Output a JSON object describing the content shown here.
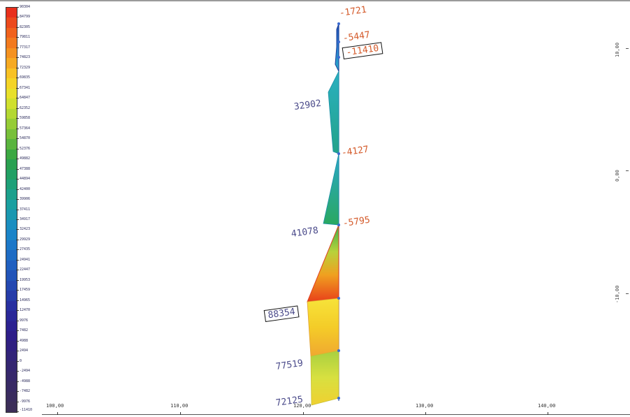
{
  "legend": {
    "labels": [
      "90304",
      "84799",
      "82305",
      "79811",
      "77317",
      "74823",
      "72329",
      "69835",
      "67341",
      "64847",
      "62352",
      "59858",
      "57364",
      "54870",
      "52376",
      "49882",
      "47388",
      "44894",
      "42400",
      "39906",
      "37411",
      "34917",
      "32423",
      "29929",
      "27435",
      "24941",
      "22447",
      "19953",
      "17459",
      "14965",
      "12470",
      "9976",
      "7482",
      "4988",
      "2494",
      "0",
      "-2494",
      "-4988",
      "-7482",
      "-9976",
      "-11410"
    ]
  },
  "axes": {
    "x_ticks": [
      "100,00",
      "110,00",
      "120,00",
      "130,00",
      "140,00"
    ],
    "y_ticks": [
      "10,00",
      "0,00",
      "-10,00"
    ]
  },
  "annotations": {
    "a1": "-1721",
    "a2": "-5447",
    "a3": "-11410",
    "a4": "32902",
    "a5": "-4127",
    "a6": "-5795",
    "a7": "41078",
    "a8": "88354",
    "a9": "77519",
    "a10": "72125"
  }
}
